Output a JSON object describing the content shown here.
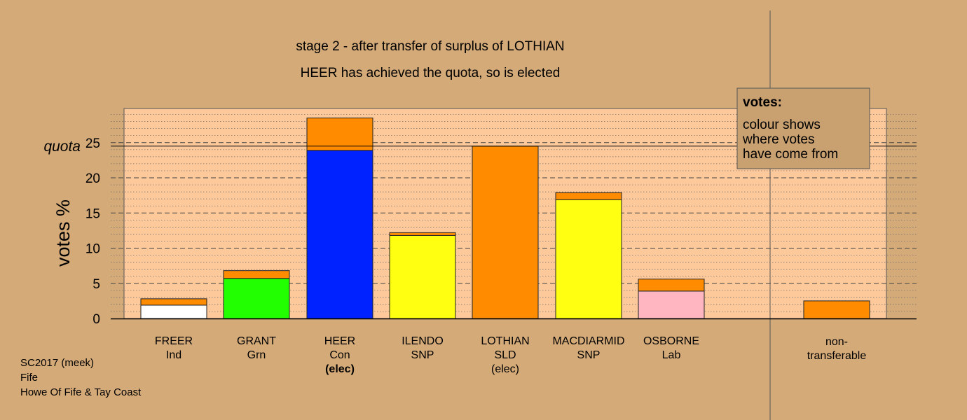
{
  "chart_data": {
    "type": "bar",
    "stacked": true,
    "title": "stage 2 - after transfer of surplus of LOTHIAN",
    "subtitle": "HEER has achieved the quota, so is elected",
    "ylabel": "votes %",
    "ylim": [
      0,
      29.8
    ],
    "yticks": [
      0,
      5,
      10,
      15,
      20,
      25
    ],
    "quota": 24.5,
    "quota_label": "quota",
    "grid": true,
    "categories": [
      {
        "name": "FREER",
        "party": "Ind",
        "note": ""
      },
      {
        "name": "GRANT",
        "party": "Grn",
        "note": ""
      },
      {
        "name": "HEER",
        "party": "Con",
        "note": "(elec)"
      },
      {
        "name": "ILENDO",
        "party": "SNP",
        "note": ""
      },
      {
        "name": "LOTHIAN",
        "party": "SLD",
        "note": "(elec)"
      },
      {
        "name": "MACDIARMID",
        "party": "SNP",
        "note": ""
      },
      {
        "name": "OSBORNE",
        "party": "Lab",
        "note": ""
      },
      {
        "name": "non-",
        "party": "transferable",
        "note": ""
      }
    ],
    "series": [
      {
        "colors": [
          "#ffffff",
          "#22ff00",
          "#0022ff",
          "#ffff11",
          "#ff8c00",
          "#ffff11",
          "#ffb6c1",
          "#ff8c00"
        ],
        "values": [
          1.9,
          5.7,
          23.9,
          11.8,
          24.5,
          16.9,
          3.9,
          2.5
        ]
      },
      {
        "color": "#ff8c00",
        "values": [
          0.9,
          1.1,
          4.6,
          0.4,
          0,
          1.0,
          1.7,
          0
        ]
      }
    ],
    "legend": {
      "position": "top-right",
      "title": "votes:",
      "lines": [
        "colour shows",
        "where votes",
        "have come from"
      ]
    }
  },
  "footer": {
    "line1": "SC2017 (meek)",
    "line2": "Fife",
    "line3": "Howe Of Fife & Tay Coast"
  }
}
